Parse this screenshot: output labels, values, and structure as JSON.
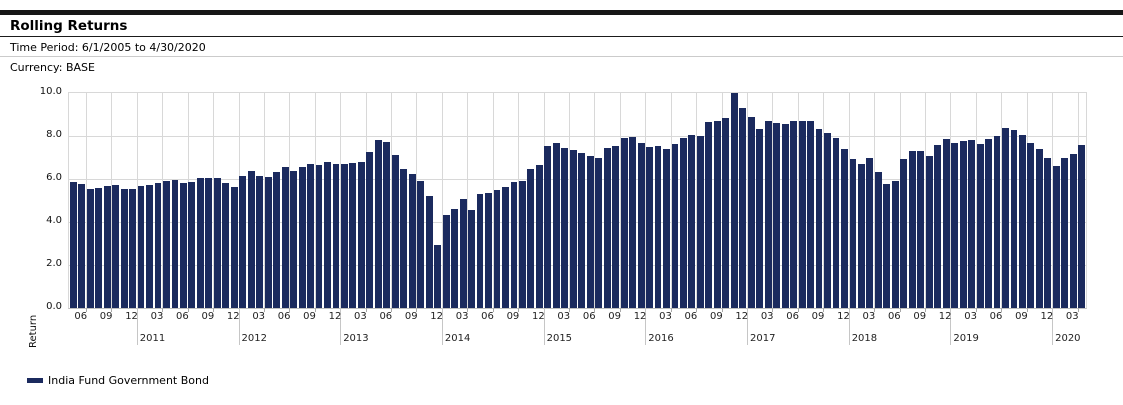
{
  "header": {
    "title": "Rolling Returns",
    "time_period": "Time Period: 6/1/2005 to 4/30/2020",
    "currency": "Currency: BASE"
  },
  "legend": {
    "label": "India Fund Government Bond",
    "swatch_color": "#1b2a5e"
  },
  "chart_data": {
    "type": "bar",
    "title": "Rolling Returns",
    "xlabel": "",
    "ylabel": "Return",
    "ylim": [
      0,
      10
    ],
    "grid": true,
    "legend_position": "bottom-left",
    "y_ticks": [
      "0.0",
      "2.0",
      "4.0",
      "6.0",
      "8.0",
      "10.0"
    ],
    "x_axis_month_ticks": [
      "06",
      "09",
      "12",
      "03",
      "06",
      "09",
      "12",
      "03",
      "06",
      "09",
      "12",
      "03",
      "06",
      "09",
      "12",
      "03",
      "06",
      "09",
      "12",
      "03",
      "06",
      "09",
      "12",
      "03",
      "06",
      "09",
      "12",
      "03",
      "06",
      "09",
      "12",
      "03",
      "06",
      "09",
      "12",
      "03",
      "06",
      "09",
      "12",
      "03"
    ],
    "x_axis_year_ticks": [
      "2011",
      "2012",
      "2013",
      "2014",
      "2015",
      "2016",
      "2017",
      "2018",
      "2019",
      "2020"
    ],
    "x": [
      "2010-05",
      "2010-06",
      "2010-07",
      "2010-08",
      "2010-09",
      "2010-10",
      "2010-11",
      "2010-12",
      "2011-01",
      "2011-02",
      "2011-03",
      "2011-04",
      "2011-05",
      "2011-06",
      "2011-07",
      "2011-08",
      "2011-09",
      "2011-10",
      "2011-11",
      "2011-12",
      "2012-01",
      "2012-02",
      "2012-03",
      "2012-04",
      "2012-05",
      "2012-06",
      "2012-07",
      "2012-08",
      "2012-09",
      "2012-10",
      "2012-11",
      "2012-12",
      "2013-01",
      "2013-02",
      "2013-03",
      "2013-04",
      "2013-05",
      "2013-06",
      "2013-07",
      "2013-08",
      "2013-09",
      "2013-10",
      "2013-11",
      "2013-12",
      "2014-01",
      "2014-02",
      "2014-03",
      "2014-04",
      "2014-05",
      "2014-06",
      "2014-07",
      "2014-08",
      "2014-09",
      "2014-10",
      "2014-11",
      "2014-12",
      "2015-01",
      "2015-02",
      "2015-03",
      "2015-04",
      "2015-05",
      "2015-06",
      "2015-07",
      "2015-08",
      "2015-09",
      "2015-10",
      "2015-11",
      "2015-12",
      "2016-01",
      "2016-02",
      "2016-03",
      "2016-04",
      "2016-05",
      "2016-06",
      "2016-07",
      "2016-08",
      "2016-09",
      "2016-10",
      "2016-11",
      "2016-12",
      "2017-01",
      "2017-02",
      "2017-03",
      "2017-04",
      "2017-05",
      "2017-06",
      "2017-07",
      "2017-08",
      "2017-09",
      "2017-10",
      "2017-11",
      "2017-12",
      "2018-01",
      "2018-02",
      "2018-03",
      "2018-04",
      "2018-05",
      "2018-06",
      "2018-07",
      "2018-08",
      "2018-09",
      "2018-10",
      "2018-11",
      "2018-12",
      "2019-01",
      "2019-02",
      "2019-03",
      "2019-04",
      "2019-05",
      "2019-06",
      "2019-07",
      "2019-08",
      "2019-09",
      "2019-10",
      "2019-11",
      "2019-12",
      "2020-01",
      "2020-02",
      "2020-03",
      "2020-04"
    ],
    "series": [
      {
        "name": "India Fund Government Bond",
        "color": "#1b2a5e",
        "values": [
          5.88,
          5.75,
          5.53,
          5.58,
          5.66,
          5.7,
          5.55,
          5.55,
          5.67,
          5.7,
          5.83,
          5.91,
          5.97,
          5.83,
          5.86,
          6.03,
          6.05,
          6.03,
          5.8,
          5.65,
          6.15,
          6.35,
          6.15,
          6.11,
          6.34,
          6.57,
          6.38,
          6.54,
          6.72,
          6.65,
          6.77,
          6.7,
          6.7,
          6.75,
          6.8,
          7.25,
          7.8,
          7.72,
          7.1,
          6.48,
          6.22,
          5.9,
          5.2,
          2.92,
          4.34,
          4.62,
          5.08,
          4.57,
          5.28,
          5.34,
          5.49,
          5.62,
          5.85,
          5.89,
          6.46,
          6.65,
          7.54,
          7.68,
          7.46,
          7.34,
          7.23,
          7.08,
          7.0,
          7.42,
          7.54,
          7.89,
          7.95,
          7.69,
          7.49,
          7.54,
          7.38,
          7.65,
          7.92,
          8.03,
          8.0,
          8.65,
          8.7,
          8.85,
          10.0,
          9.3,
          8.9,
          8.34,
          8.72,
          8.62,
          8.54,
          8.72,
          8.72,
          8.69,
          8.34,
          8.15,
          7.89,
          7.38,
          6.95,
          6.72,
          7.0,
          6.34,
          5.77,
          5.92,
          6.95,
          7.28,
          7.31,
          7.08,
          7.57,
          7.88,
          7.69,
          7.77,
          7.8,
          7.65,
          7.85,
          8.0,
          8.38,
          8.26,
          8.03,
          7.69,
          7.4,
          7.0,
          6.6,
          6.98,
          7.15,
          7.6
        ]
      }
    ]
  }
}
